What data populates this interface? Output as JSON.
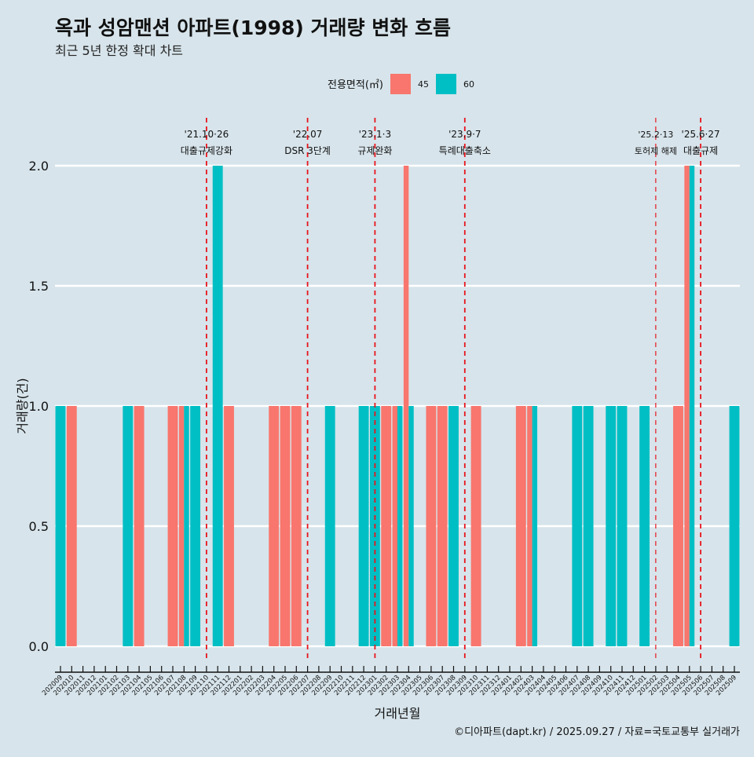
{
  "title": "옥과 성암맨션 아파트(1998) 거래량 변화 흐름",
  "subtitle": "최근 5년 한정 확대 차트",
  "caption": "©디아파트(dapt.kr) / 2025.09.27 / 자료=국토교통부 실거래가",
  "colors": {
    "s45": "#f8766d",
    "s60": "#00bfc4",
    "background": "#d7e4eb",
    "vline": "#e8141c"
  },
  "chart_data": {
    "type": "bar",
    "xlabel": "거래년월",
    "ylabel": "거래량(건)",
    "ylim": [
      0,
      2
    ],
    "yticks": [
      "0.0",
      "0.5",
      "1.0",
      "1.5",
      "2.0"
    ],
    "legend": {
      "title": "전용면적(㎡)",
      "placement": "top",
      "entries": [
        "45",
        "60"
      ]
    },
    "categories": [
      "202009",
      "202010",
      "202011",
      "202012",
      "202101",
      "202102",
      "202103",
      "202104",
      "202105",
      "202106",
      "202107",
      "202108",
      "202109",
      "202110",
      "202111",
      "202112",
      "202201",
      "202202",
      "202203",
      "202204",
      "202205",
      "202206",
      "202207",
      "202208",
      "202209",
      "202210",
      "202211",
      "202212",
      "202301",
      "202302",
      "202303",
      "202304",
      "202305",
      "202306",
      "202307",
      "202308",
      "202309",
      "202310",
      "202311",
      "202312",
      "202401",
      "202402",
      "202403",
      "202404",
      "202405",
      "202406",
      "202407",
      "202408",
      "202409",
      "202410",
      "202411",
      "202412",
      "202501",
      "202502",
      "202503",
      "202504",
      "202505",
      "202506",
      "202507",
      "202508",
      "202509"
    ],
    "series": [
      {
        "name": "45",
        "values": {
          "202010": 1,
          "202104": 1,
          "202107": 1,
          "202108": 1,
          "202112": 1,
          "202204": 1,
          "202205": 1,
          "202206": 1,
          "202302": 1,
          "202303": 1,
          "202304": 2,
          "202306": 1,
          "202307": 1,
          "202310": 1,
          "202402": 1,
          "202403": 1,
          "202504": 1,
          "202505": 2
        }
      },
      {
        "name": "60",
        "values": {
          "202009": 1,
          "202103": 1,
          "202108": 1,
          "202109": 1,
          "202111": 2,
          "202209": 1,
          "202212": 1,
          "202301": 1,
          "202303": 1,
          "202304": 1,
          "202308": 1,
          "202403": 1,
          "202407": 1,
          "202408": 1,
          "202410": 1,
          "202411": 1,
          "202501": 1,
          "202505": 2,
          "202509": 1
        }
      }
    ],
    "annotations": [
      {
        "month": "202110",
        "date": "'21.10·26",
        "label": "대출규제강화",
        "small": false
      },
      {
        "month": "202207",
        "date": "'22.07",
        "label": "DSR 3단계",
        "small": false
      },
      {
        "month": "202301",
        "date": "'23.1·3",
        "label": "규제완화",
        "small": false
      },
      {
        "month": "202309",
        "date": "'23.9·7",
        "label": "특례대출축소",
        "small": false
      },
      {
        "month": "202502",
        "date": "'25.2·13",
        "label": "토허제 해제",
        "small": true
      },
      {
        "month": "202506",
        "date": "'25.6·27",
        "label": "대출규제",
        "small": false
      }
    ]
  }
}
